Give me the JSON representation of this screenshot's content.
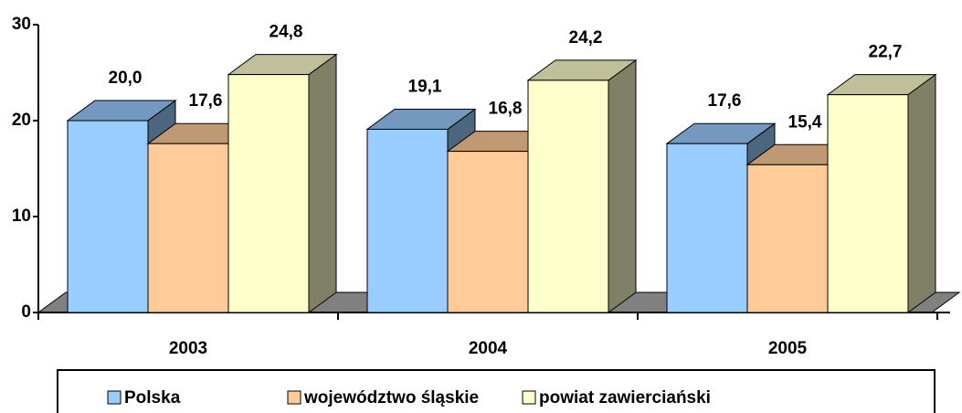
{
  "chart_data": {
    "type": "bar3d",
    "categories": [
      "2003",
      "2004",
      "2005"
    ],
    "series": [
      {
        "name": "Polska",
        "color": "#99ccff",
        "values": [
          20.0,
          19.1,
          17.6
        ],
        "value_labels": [
          "20,0",
          "19,1",
          "17,6"
        ]
      },
      {
        "name": "województwo śląskie",
        "color": "#ffcc99",
        "values": [
          17.6,
          16.8,
          15.4
        ],
        "value_labels": [
          "17,6",
          "16,8",
          "15,4"
        ]
      },
      {
        "name": "powiat zawierciański",
        "color": "#ffffcc",
        "values": [
          24.8,
          24.2,
          22.7
        ],
        "value_labels": [
          "24,8",
          "24,2",
          "22,7"
        ]
      }
    ],
    "ylim": [
      0,
      30
    ],
    "yticks": [
      0,
      10,
      20,
      30
    ]
  }
}
